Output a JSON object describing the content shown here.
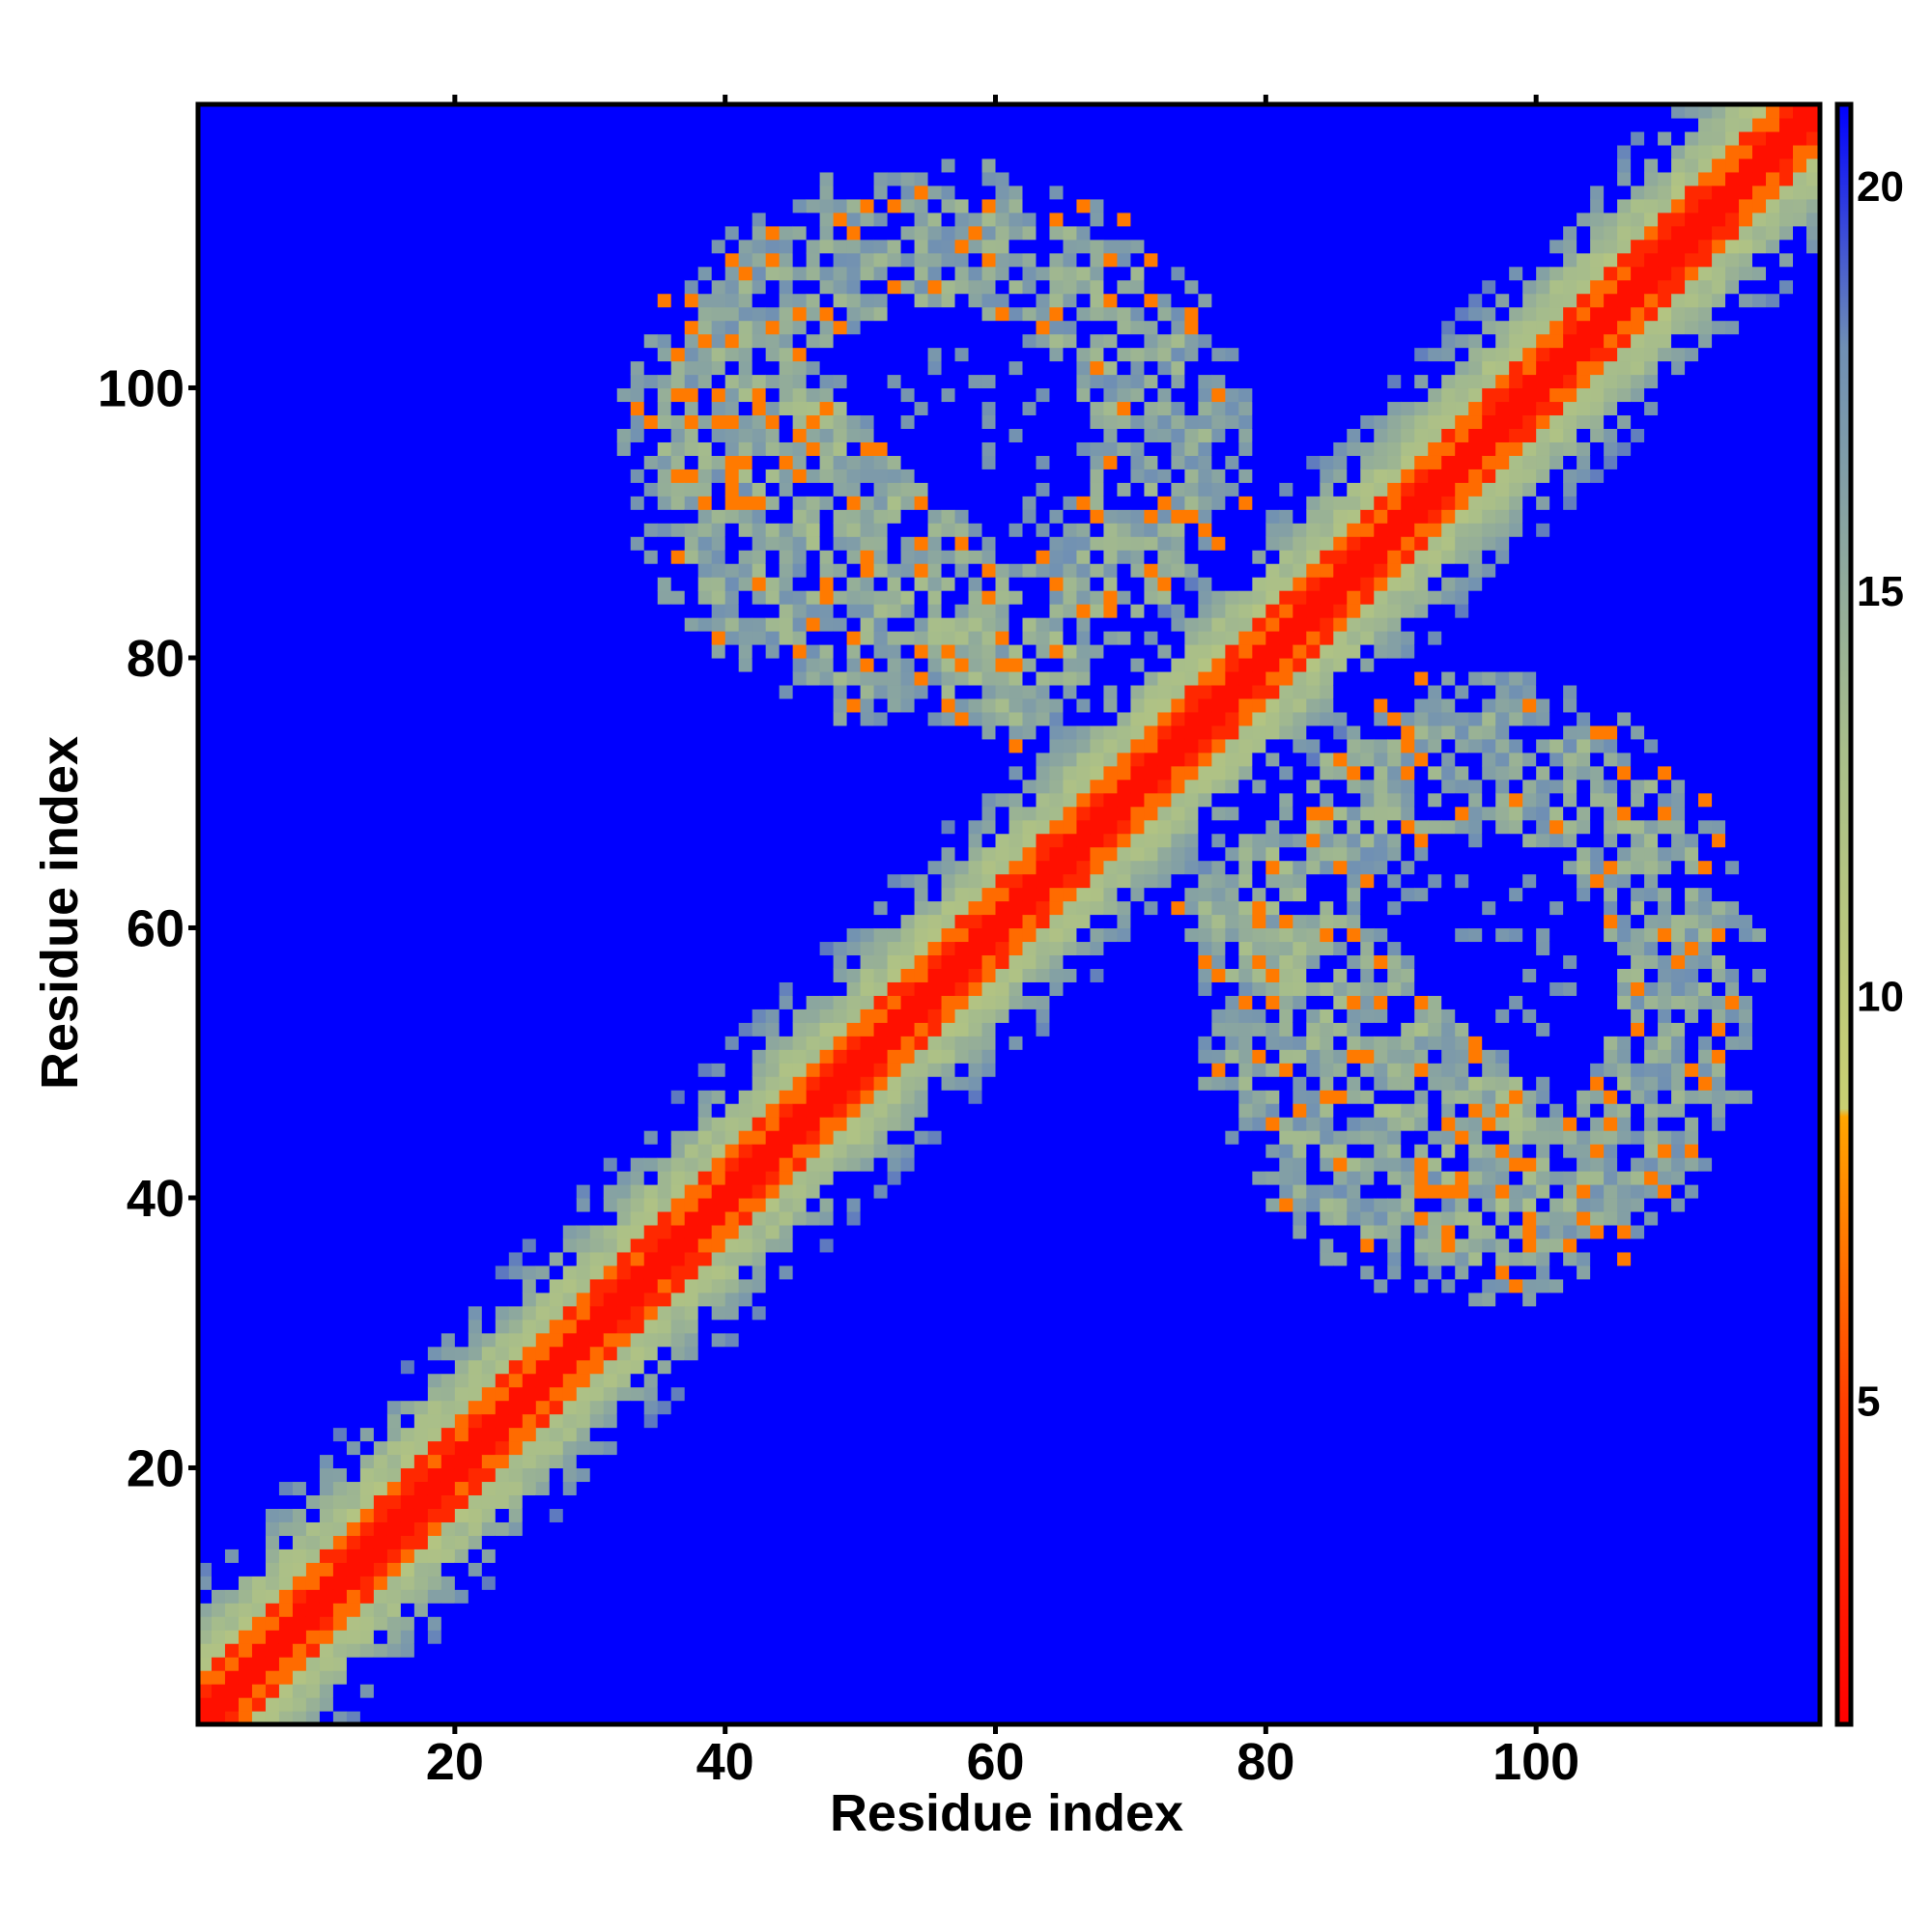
{
  "chart_data": {
    "type": "heatmap",
    "title": "",
    "xlabel": "Residue index",
    "ylabel": "Residue index",
    "n_residues": 120,
    "xlim": [
      1,
      121
    ],
    "ylim": [
      1,
      121
    ],
    "x_ticks": [
      20,
      40,
      60,
      80,
      100
    ],
    "y_ticks": [
      20,
      40,
      60,
      80,
      100
    ],
    "colorbar": {
      "ticks": [
        5,
        10,
        15,
        20
      ],
      "range": [
        1,
        21
      ],
      "stops": [
        {
          "value": 1,
          "color": "#ff0000"
        },
        {
          "value": 5,
          "color": "#ff4000"
        },
        {
          "value": 8.5,
          "color": "#ffa500"
        },
        {
          "value": 8.6,
          "color": "#c9cf72"
        },
        {
          "value": 13,
          "color": "#a8be8a"
        },
        {
          "value": 18,
          "color": "#6f8fb4"
        },
        {
          "value": 21,
          "color": "#0000ff"
        }
      ]
    },
    "description_of_data": "Pairwise residue distance map, symmetric about the diagonal",
    "features": {
      "diagonal_band_halfwidth": 6,
      "cross_band": {
        "center_sum": 140,
        "x_range": [
          40,
          100
        ]
      },
      "off_diagonal_domains": [
        {
          "x_center": 55,
          "y_center": 95,
          "rx": 22,
          "ry": 20
        },
        {
          "x_center": 95,
          "y_center": 55,
          "rx": 20,
          "ry": 22
        }
      ]
    }
  }
}
